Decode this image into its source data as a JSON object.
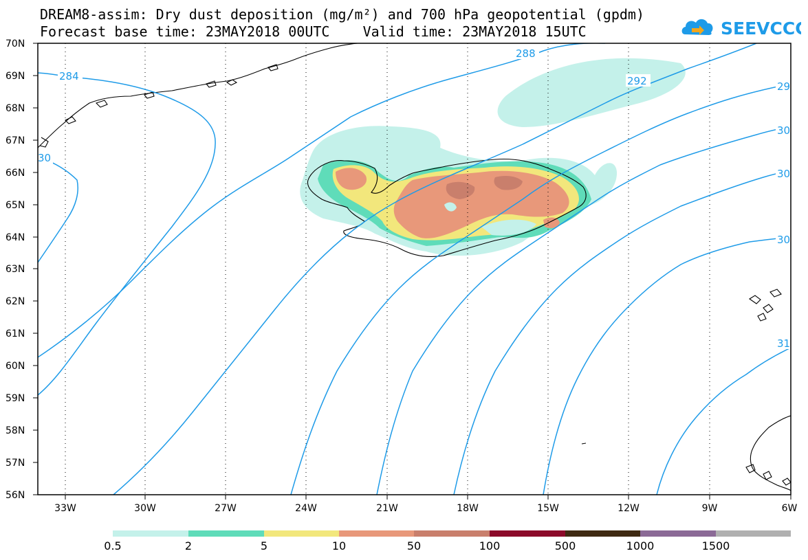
{
  "title": {
    "line1": "DREAM8-assim: Dry dust deposition (mg/m²) and 700 hPa geopotential (gpdm)",
    "line2": "Forecast base time: 23MAY2018 00UTC    Valid time: 23MAY2018 15UTC"
  },
  "logo": {
    "text": "SEEVCCC"
  },
  "axes": {
    "lat_labels": [
      "70N",
      "69N",
      "68N",
      "67N",
      "66N",
      "65N",
      "64N",
      "63N",
      "62N",
      "61N",
      "60N",
      "59N",
      "58N",
      "57N",
      "56N"
    ],
    "lon_labels": [
      "33W",
      "30W",
      "27W",
      "24W",
      "21W",
      "18W",
      "15W",
      "12W",
      "9W",
      "6W"
    ]
  },
  "contour_labels": [
    "284",
    "288",
    "292",
    "29",
    "30",
    "30",
    "30",
    "31",
    "30"
  ],
  "legend": {
    "breaks": [
      "0.5",
      "2",
      "5",
      "10",
      "50",
      "100",
      "500",
      "1000",
      "1500"
    ],
    "colors": [
      "#c4f1ea",
      "#5fdcb9",
      "#f2e77c",
      "#e8987a",
      "#c97f6c",
      "#8c0a2a",
      "#3f2a12",
      "#8b6a96",
      "#b0b0b0"
    ]
  },
  "colors": {
    "contour": "#1e9be8",
    "coast": "#000000",
    "frame": "#000000"
  }
}
